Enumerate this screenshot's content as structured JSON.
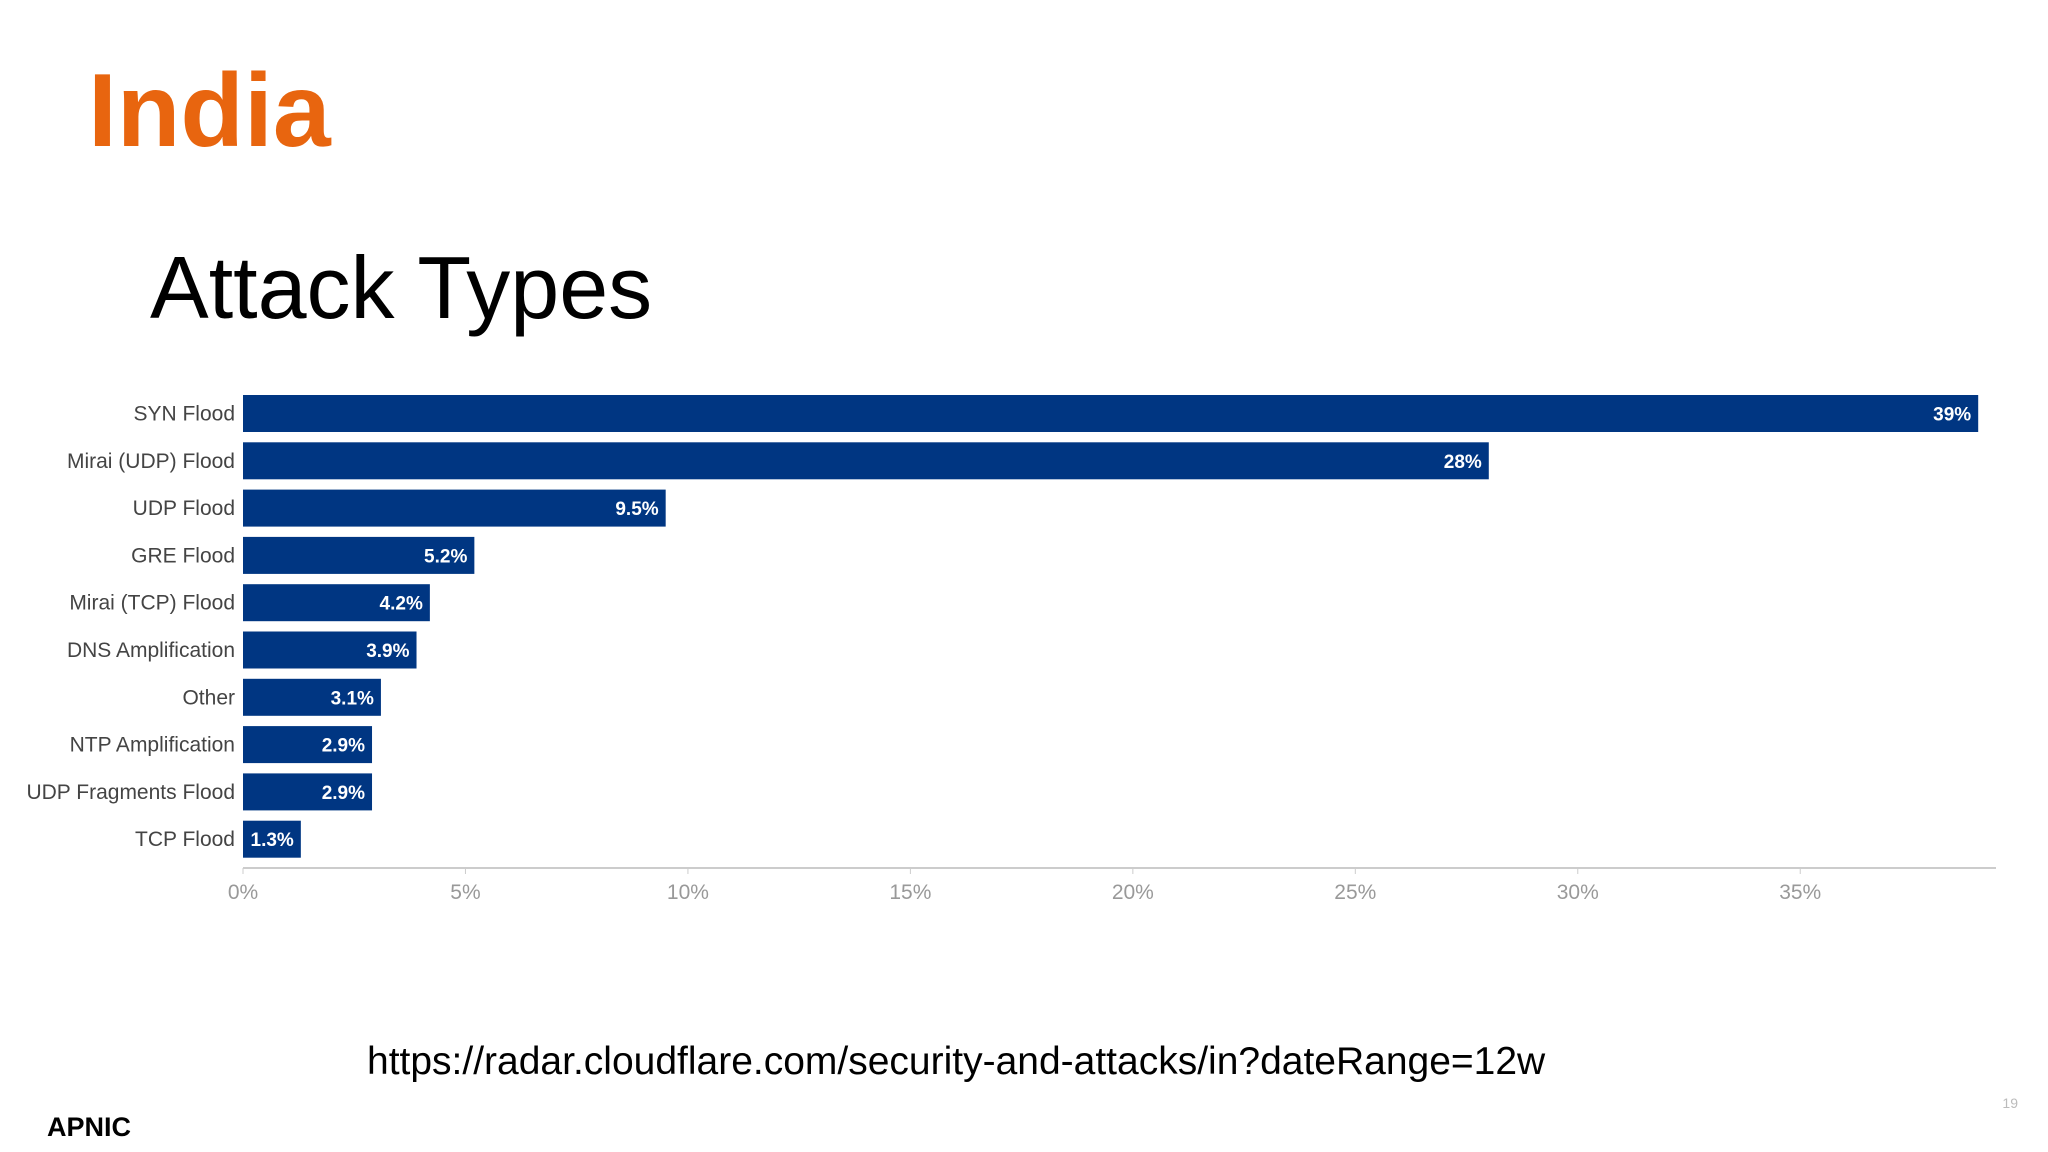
{
  "slide": {
    "title": "India",
    "subtitle": "Attack Types",
    "source_url": "https://radar.cloudflare.com/security-and-attacks/in?dateRange=12w",
    "logo": "APNIC",
    "page_number": "19"
  },
  "chart_data": {
    "type": "hbar",
    "categories": [
      "SYN Flood",
      "Mirai (UDP) Flood",
      "UDP Flood",
      "GRE Flood",
      "Mirai (TCP) Flood",
      "DNS Amplification",
      "Other",
      "NTP Amplification",
      "UDP Fragments Flood",
      "TCP Flood"
    ],
    "values": [
      39,
      28,
      9.5,
      5.2,
      4.2,
      3.9,
      3.1,
      2.9,
      2.9,
      1.3
    ],
    "value_labels": [
      "39%",
      "28%",
      "9.5%",
      "5.2%",
      "4.2%",
      "3.9%",
      "3.1%",
      "2.9%",
      "2.9%",
      "1.3%"
    ],
    "color": "#003682",
    "xlim": [
      0,
      39.4
    ],
    "xticks": [
      {
        "value": 0,
        "label": "0%"
      },
      {
        "value": 5,
        "label": "5%"
      },
      {
        "value": 10,
        "label": "10%"
      },
      {
        "value": 15,
        "label": "15%"
      },
      {
        "value": 20,
        "label": "20%"
      },
      {
        "value": 25,
        "label": "25%"
      },
      {
        "value": 30,
        "label": "30%"
      },
      {
        "value": 35,
        "label": "35%"
      }
    ],
    "grid": false
  }
}
